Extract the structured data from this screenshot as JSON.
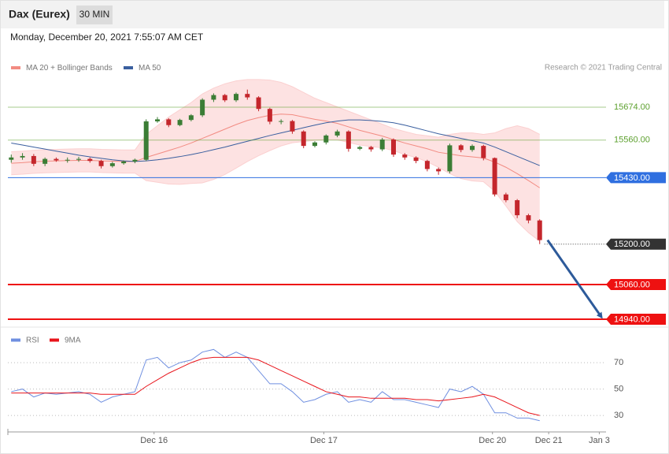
{
  "header": {
    "title": "Dax (Eurex)",
    "timeframe": "30 MIN",
    "timestamp": "Monday, December 20, 2021 7:55:07 AM CET",
    "credit": "Research © 2021 Trading Central"
  },
  "chart_data": [
    {
      "type": "candlestick",
      "xlim": [
        -0.3,
        52.9
      ],
      "ylim": [
        14925,
        15775
      ],
      "up_color": "#3b7d35",
      "down_color": "#c4262c",
      "open": [
        15492,
        15500,
        15505,
        15478,
        15495,
        15490,
        15492,
        15495,
        15488,
        15470,
        15480,
        15486,
        15492,
        15625,
        15632,
        15612,
        15630,
        15646,
        15700,
        15716,
        15698,
        15720,
        15708,
        15668,
        15624,
        15626,
        15590,
        15540,
        15552,
        15576,
        15590,
        15530,
        15536,
        15528,
        15562,
        15510,
        15500,
        15488,
        15460,
        15452,
        15542,
        15526,
        15540,
        15498,
        15372,
        15352,
        15300,
        15282
      ],
      "high": [
        15510,
        15515,
        15512,
        15500,
        15500,
        15500,
        15502,
        15500,
        15492,
        15485,
        15490,
        15496,
        15632,
        15640,
        15636,
        15634,
        15650,
        15705,
        15722,
        15720,
        15725,
        15735,
        15712,
        15672,
        15632,
        15630,
        15594,
        15556,
        15580,
        15596,
        15594,
        15540,
        15540,
        15568,
        15566,
        15515,
        15504,
        15492,
        15465,
        15548,
        15546,
        15545,
        15544,
        15500,
        15378,
        15356,
        15305,
        15286
      ],
      "low": [
        15482,
        15492,
        15470,
        15470,
        15485,
        15482,
        15485,
        15482,
        15462,
        15465,
        15475,
        15480,
        15488,
        15620,
        15605,
        15608,
        15625,
        15640,
        15692,
        15692,
        15692,
        15700,
        15660,
        15615,
        15615,
        15582,
        15532,
        15535,
        15545,
        15570,
        15520,
        15525,
        15520,
        15522,
        15502,
        15492,
        15480,
        15452,
        15440,
        15445,
        15518,
        15520,
        15490,
        15365,
        15345,
        15290,
        15272,
        15200
      ],
      "close": [
        15500,
        15505,
        15478,
        15495,
        15490,
        15492,
        15495,
        15488,
        15470,
        15480,
        15486,
        15492,
        15625,
        15632,
        15612,
        15630,
        15646,
        15700,
        15716,
        15698,
        15720,
        15708,
        15668,
        15624,
        15626,
        15590,
        15540,
        15552,
        15576,
        15590,
        15530,
        15536,
        15528,
        15562,
        15510,
        15500,
        15488,
        15460,
        15452,
        15542,
        15526,
        15540,
        15498,
        15372,
        15352,
        15300,
        15282,
        15214
      ],
      "series": [
        {
          "name": "MA 20 + Bollinger Bands",
          "color": "#f28b82",
          "values": [
            15480,
            15482,
            15485,
            15487,
            15488,
            15489,
            15490,
            15490,
            15488,
            15487,
            15486,
            15486,
            15500,
            15512,
            15524,
            15536,
            15550,
            15566,
            15582,
            15598,
            15614,
            15628,
            15638,
            15646,
            15650,
            15648,
            15640,
            15632,
            15626,
            15618,
            15606,
            15594,
            15584,
            15574,
            15562,
            15550,
            15540,
            15530,
            15518,
            15512,
            15506,
            15502,
            15498,
            15484,
            15466,
            15444,
            15420,
            15395
          ],
          "upper": [
            15520,
            15522,
            15525,
            15527,
            15528,
            15529,
            15530,
            15530,
            15528,
            15527,
            15526,
            15526,
            15580,
            15610,
            15640,
            15665,
            15690,
            15720,
            15740,
            15755,
            15765,
            15770,
            15770,
            15768,
            15760,
            15745,
            15725,
            15705,
            15690,
            15675,
            15660,
            15645,
            15630,
            15615,
            15600,
            15590,
            15580,
            15575,
            15570,
            15580,
            15585,
            15585,
            15580,
            15585,
            15600,
            15610,
            15600,
            15580
          ],
          "lower": [
            15440,
            15442,
            15445,
            15447,
            15448,
            15449,
            15450,
            15450,
            15448,
            15447,
            15446,
            15446,
            15420,
            15414,
            15408,
            15407,
            15410,
            15412,
            15424,
            15441,
            15463,
            15486,
            15506,
            15524,
            15540,
            15551,
            15555,
            15559,
            15562,
            15561,
            15552,
            15543,
            15538,
            15533,
            15524,
            15510,
            15500,
            15485,
            15466,
            15444,
            15427,
            15419,
            15416,
            15383,
            15332,
            15278,
            15240,
            15210
          ]
        },
        {
          "name": "MA 50",
          "color": "#3a5f9f",
          "values": [
            15550,
            15543,
            15536,
            15529,
            15522,
            15515,
            15508,
            15502,
            15497,
            15492,
            15488,
            15486,
            15488,
            15492,
            15497,
            15503,
            15510,
            15518,
            15527,
            15536,
            15546,
            15556,
            15566,
            15576,
            15585,
            15594,
            15603,
            15612,
            15620,
            15626,
            15630,
            15630,
            15628,
            15625,
            15620,
            15612,
            15602,
            15592,
            15582,
            15574,
            15566,
            15558,
            15550,
            15536,
            15520,
            15504,
            15488,
            15472
          ]
        }
      ],
      "levels": [
        {
          "value": 15674,
          "label": "15674.00",
          "color": "#5ea130",
          "style": "thin"
        },
        {
          "value": 15560,
          "label": "15560.00",
          "color": "#5ea130",
          "style": "thin"
        },
        {
          "value": 15430,
          "label": "15430.00",
          "color": "#2f6fe0",
          "style": "box"
        },
        {
          "value": 15200,
          "label": "15200.00",
          "color": "#333333",
          "style": "dotted"
        },
        {
          "value": 15060,
          "label": "15060.00",
          "color": "#ee1111",
          "style": "thick"
        },
        {
          "value": 14940,
          "label": "14940.00",
          "color": "#ee1111",
          "style": "thick"
        }
      ]
    },
    {
      "type": "line",
      "xlim": [
        -0.3,
        52.9
      ],
      "ylim": [
        19,
        82
      ],
      "yticks": [
        70,
        50,
        30
      ],
      "grid": true,
      "xticks": [
        {
          "value": 12.7,
          "label": "Dec 16"
        },
        {
          "value": 27.8,
          "label": "Dec 17"
        },
        {
          "value": 42.8,
          "label": "Dec 20"
        },
        {
          "value": 47.8,
          "label": "Dec 21"
        },
        {
          "value": 52.3,
          "label": "Jan 3"
        }
      ],
      "series": [
        {
          "name": "RSI",
          "color": "#6f8fe0",
          "values": [
            48,
            50,
            44,
            47,
            46,
            47,
            48,
            46,
            40,
            44,
            46,
            48,
            72,
            74,
            66,
            70,
            72,
            78,
            80,
            74,
            78,
            74,
            64,
            54,
            54,
            48,
            40,
            42,
            46,
            48,
            40,
            42,
            40,
            48,
            42,
            42,
            40,
            38,
            36,
            50,
            48,
            52,
            46,
            32,
            32,
            28,
            28,
            26
          ]
        },
        {
          "name": "9MA",
          "color": "#e8141b",
          "values": [
            47,
            47,
            47,
            47,
            47,
            47,
            47,
            47,
            46,
            46,
            46,
            46,
            52,
            57,
            62,
            66,
            70,
            73,
            74,
            74,
            74,
            74,
            72,
            68,
            64,
            60,
            56,
            52,
            48,
            46,
            44,
            44,
            43,
            43,
            43,
            43,
            42,
            42,
            41,
            42,
            43,
            44,
            46,
            44,
            40,
            36,
            32,
            30
          ]
        }
      ]
    }
  ]
}
